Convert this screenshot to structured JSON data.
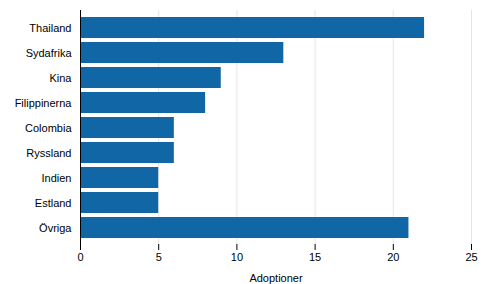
{
  "chart_data": {
    "type": "bar",
    "orientation": "horizontal",
    "categories": [
      "Övriga",
      "Estland",
      "Indien",
      "Ryssland",
      "Colombia",
      "Filippinerna",
      "Kina",
      "Sydafrika",
      "Thailand"
    ],
    "values": [
      21,
      5,
      5,
      6,
      6,
      8,
      9,
      13,
      22
    ],
    "color": "#1167a5",
    "xlabel": "Adoptioner",
    "xlim": [
      0,
      25
    ],
    "xticks": [
      0,
      5,
      10,
      15,
      20,
      25
    ],
    "grid": true
  }
}
